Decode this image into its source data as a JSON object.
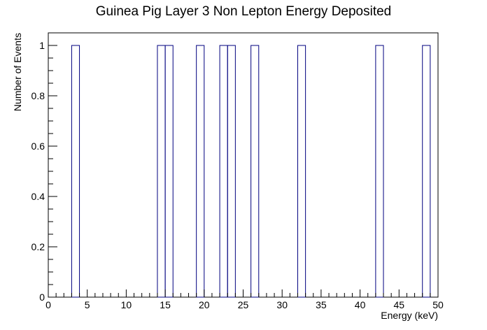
{
  "chart_data": {
    "type": "histogram",
    "title": "Guinea Pig Layer 3 Non Lepton Energy Deposited",
    "xlabel": "Energy (keV)",
    "ylabel": "Number of Events",
    "xlim": [
      0,
      50
    ],
    "ylim": [
      0,
      1.05
    ],
    "bin_width": 1,
    "bins": [
      {
        "x_low": 3,
        "x_high": 4,
        "count": 1
      },
      {
        "x_low": 14,
        "x_high": 15,
        "count": 1
      },
      {
        "x_low": 15,
        "x_high": 16,
        "count": 1
      },
      {
        "x_low": 19,
        "x_high": 20,
        "count": 1
      },
      {
        "x_low": 22,
        "x_high": 23,
        "count": 1
      },
      {
        "x_low": 23,
        "x_high": 24,
        "count": 1
      },
      {
        "x_low": 26,
        "x_high": 27,
        "count": 1
      },
      {
        "x_low": 32,
        "x_high": 33,
        "count": 1
      },
      {
        "x_low": 42,
        "x_high": 43,
        "count": 1
      },
      {
        "x_low": 48,
        "x_high": 49,
        "count": 1
      }
    ],
    "x_ticks": [
      "0",
      "5",
      "10",
      "15",
      "20",
      "25",
      "30",
      "35",
      "40",
      "45",
      "50"
    ],
    "y_ticks": [
      "0",
      "0.2",
      "0.4",
      "0.6",
      "0.8",
      "1"
    ],
    "line_color": "#00007f",
    "grid": false,
    "legend": "none"
  }
}
